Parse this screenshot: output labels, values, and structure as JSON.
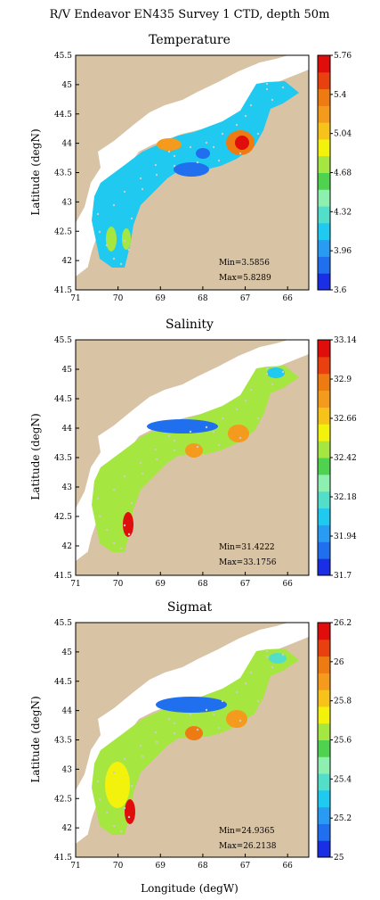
{
  "figure": {
    "title": "R/V Endeavor EN435 Survey 1 CTD, depth 50m",
    "xlabel": "Longitude (degW)",
    "ylabel": "Latitude (degN)",
    "land_color": "#d8c3a5",
    "ocean_color": "#ffffff"
  },
  "chart_data": [
    {
      "type": "heatmap",
      "title": "Temperature",
      "xlabel": "",
      "ylabel": "Latitude (degN)",
      "xlim": [
        71,
        65.5
      ],
      "ylim": [
        41.5,
        45.5
      ],
      "x_ticks": [
        "71",
        "70",
        "69",
        "68",
        "67",
        "66"
      ],
      "y_ticks": [
        "41.5",
        "42",
        "42.5",
        "43",
        "43.5",
        "44",
        "44.5",
        "45",
        "45.5"
      ],
      "colorbar": {
        "ticks": [
          "3.6",
          "3.96",
          "4.32",
          "4.68",
          "5.04",
          "5.4",
          "5.76"
        ],
        "min": 3.6,
        "max": 5.76
      },
      "stats": {
        "min": "Min=3.5856",
        "max": "Max=5.8289"
      }
    },
    {
      "type": "heatmap",
      "title": "Salinity",
      "xlabel": "",
      "ylabel": "Latitude (degN)",
      "xlim": [
        71,
        65.5
      ],
      "ylim": [
        41.5,
        45.5
      ],
      "x_ticks": [
        "71",
        "70",
        "69",
        "68",
        "67",
        "66"
      ],
      "y_ticks": [
        "41.5",
        "42",
        "42.5",
        "43",
        "43.5",
        "44",
        "44.5",
        "45",
        "45.5"
      ],
      "colorbar": {
        "ticks": [
          "31.7",
          "31.94",
          "32.18",
          "32.42",
          "32.66",
          "32.9",
          "33.14"
        ],
        "min": 31.7,
        "max": 33.14
      },
      "stats": {
        "min": "Min=31.4222",
        "max": "Max=33.1756"
      }
    },
    {
      "type": "heatmap",
      "title": "Sigmat",
      "xlabel": "Longitude (degW)",
      "ylabel": "Latitude (degN)",
      "xlim": [
        71,
        65.5
      ],
      "ylim": [
        41.5,
        45.5
      ],
      "x_ticks": [
        "71",
        "70",
        "69",
        "68",
        "67",
        "66"
      ],
      "y_ticks": [
        "41.5",
        "42",
        "42.5",
        "43",
        "43.5",
        "44",
        "44.5",
        "45",
        "45.5"
      ],
      "colorbar": {
        "ticks": [
          "25",
          "25.2",
          "25.4",
          "25.6",
          "25.8",
          "26",
          "26.2"
        ],
        "min": 25,
        "max": 26.2
      },
      "stats": {
        "min": "Min=24.9365",
        "max": "Max=26.2138"
      }
    }
  ],
  "colormap": [
    "#1a2ee6",
    "#1f6fee",
    "#2a9bf2",
    "#1fc9f0",
    "#52dec8",
    "#8ef0b0",
    "#4fd24f",
    "#a6e640",
    "#f2f20d",
    "#f7c21a",
    "#f49a1c",
    "#ee7a12",
    "#e8400f",
    "#e00d0d"
  ]
}
